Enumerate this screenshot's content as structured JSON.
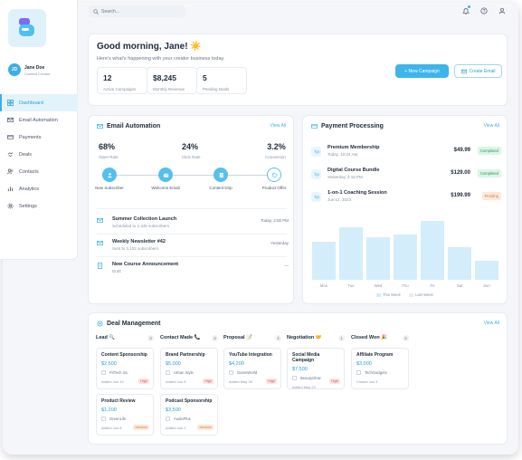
{
  "sidebar": {
    "user": {
      "initials": "JD",
      "name": "Jane Doe",
      "role": "Content Creator"
    },
    "items": [
      {
        "label": "Dashboard",
        "active": true
      },
      {
        "label": "Email Automation"
      },
      {
        "label": "Payments"
      },
      {
        "label": "Deals"
      },
      {
        "label": "Contacts"
      },
      {
        "label": "Analytics"
      },
      {
        "label": "Settings"
      }
    ]
  },
  "topbar": {
    "search_placeholder": "Search..."
  },
  "welcome": {
    "greeting": "Good morning, Jane! ☀️",
    "subtitle": "Here's what's happening with your creator business today.",
    "stats": [
      {
        "value": "12",
        "label": "Active Campaigns"
      },
      {
        "value": "$8,245",
        "label": "Monthly Revenue"
      },
      {
        "value": "5",
        "label": "Pending Deals"
      }
    ],
    "new_campaign": "+ New Campaign",
    "create_email": "Create Email"
  },
  "email": {
    "title": "Email Automation",
    "view_all": "View All",
    "metrics": [
      {
        "value": "68%",
        "label": "Open Rate"
      },
      {
        "value": "24%",
        "label": "Click Rate"
      },
      {
        "value": "3.2%",
        "label": "Conversion"
      }
    ],
    "flow": [
      {
        "label": "New Subscriber"
      },
      {
        "label": "Welcome Email"
      },
      {
        "label": "Content Drip"
      },
      {
        "label": "Product Offer"
      }
    ],
    "campaigns": [
      {
        "name": "Summer Collection Launch",
        "detail": "Scheduled to 2,345 subscribers",
        "time": "Today, 2:00 PM"
      },
      {
        "name": "Weekly Newsletter #42",
        "detail": "Sent to 2,102 subscribers",
        "time": "Yesterday"
      },
      {
        "name": "New Course Announcement",
        "detail": "Draft",
        "time": "—"
      }
    ]
  },
  "payment": {
    "title": "Payment Processing",
    "view_all": "View All",
    "transactions": [
      {
        "name": "Premium Membership",
        "date": "Today, 10:34 AM",
        "amount": "$49.99",
        "status": "Completed"
      },
      {
        "name": "Digital Course Bundle",
        "date": "Yesterday, 3:15 PM",
        "amount": "$129.00",
        "status": "Completed"
      },
      {
        "name": "1-on-1 Coaching Session",
        "date": "Jun 12, 2023",
        "amount": "$199.99",
        "status": "Pending"
      }
    ],
    "legend": {
      "this_week": "This Week",
      "last_week": "Last Week"
    }
  },
  "chart_data": {
    "type": "bar",
    "categories": [
      "Mon",
      "Tue",
      "Wed",
      "Thu",
      "Fri",
      "Sat",
      "Sun"
    ],
    "series": [
      {
        "name": "This Week",
        "values": [
          42,
          58,
          47,
          50,
          65,
          36,
          21
        ]
      }
    ],
    "ylim": [
      0,
      70
    ],
    "legend": "bottom-center",
    "grid": false
  },
  "deals": {
    "title": "Deal Management",
    "view_all": "View All",
    "columns": [
      {
        "title": "Lead 🔍",
        "count": "3",
        "cards": [
          {
            "title": "Content Sponsorship",
            "value": "$2,500",
            "company": "FitTech Inc.",
            "date": "Added Jun 10",
            "priority": "High"
          },
          {
            "title": "Product Review",
            "value": "$1,200",
            "company": "GreenLife",
            "date": "Added Jun 8",
            "priority": "Medium"
          }
        ]
      },
      {
        "title": "Contact Made 📞",
        "count": "2",
        "cards": [
          {
            "title": "Brand Partnership",
            "value": "$5,000",
            "company": "Urban Style",
            "date": "Added Jun 5",
            "priority": "High"
          },
          {
            "title": "Podcast Sponsorship",
            "value": "$3,500",
            "company": "AudioPlus",
            "date": "Added Jun 1",
            "priority": "Medium"
          }
        ]
      },
      {
        "title": "Proposal 📝",
        "count": "2",
        "cards": [
          {
            "title": "YouTube Integration",
            "value": "$4,200",
            "company": "GameWorld",
            "date": "Added May 28",
            "priority": "High"
          }
        ]
      },
      {
        "title": "Negotiation 🤝",
        "count": "1",
        "cards": [
          {
            "title": "Social Media Campaign",
            "value": "$7,500",
            "company": "BeautyGlow",
            "date": "Added May 22",
            "priority": "High"
          }
        ]
      },
      {
        "title": "Closed Won 🎉",
        "count": "2",
        "cards": [
          {
            "title": "Affiliate Program",
            "value": "$3,000",
            "company": "TechGadgets",
            "date": "Closed Jun 3",
            "priority": ""
          }
        ]
      }
    ]
  },
  "colors": {
    "accent": "#39b0e5",
    "bar": "#d3edfb",
    "success": "#1f9d55",
    "pending": "#e07a3e"
  }
}
